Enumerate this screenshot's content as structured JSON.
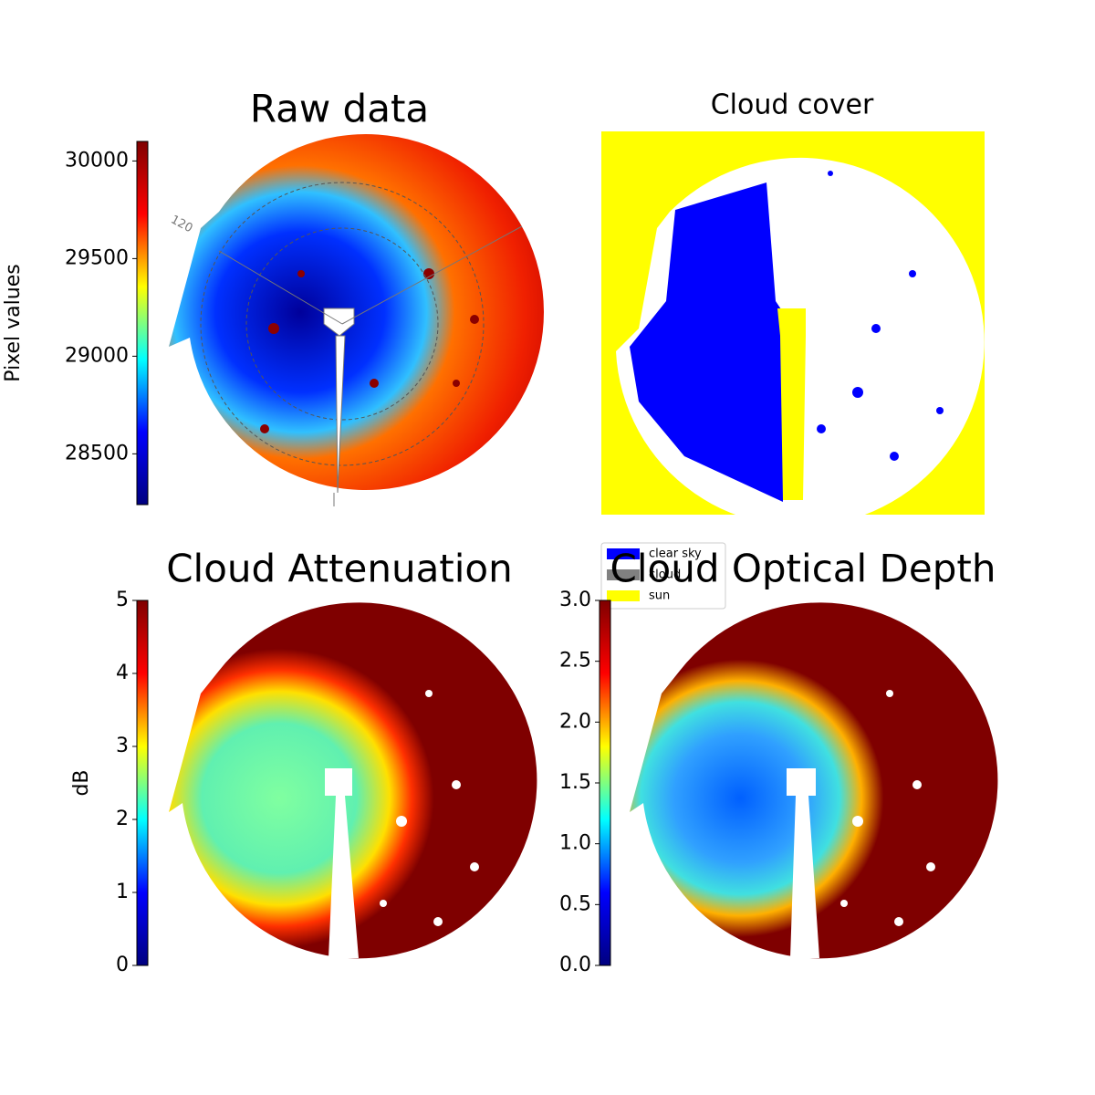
{
  "chart_data": [
    {
      "type": "image-colorbar",
      "title": "Raw data",
      "colorbar_label": "Pixel values",
      "ylim": [
        28240,
        30100
      ],
      "yticks": [
        28500,
        29000,
        29500,
        30000
      ],
      "colormap": [
        "#00007f",
        "#0000ff",
        "#00ffff",
        "#ffff00",
        "#ff0000",
        "#7f0000"
      ],
      "annotations": [
        "120"
      ]
    },
    {
      "type": "image-legend",
      "title": "Cloud cover",
      "legend": [
        {
          "name": "clear sky",
          "color": "#0000ff"
        },
        {
          "name": "cloud",
          "color": "#808080"
        },
        {
          "name": "sun",
          "color": "#ffff00"
        }
      ]
    },
    {
      "type": "image-colorbar",
      "title": "Cloud Attenuation",
      "colorbar_label": "dB",
      "ylim": [
        0,
        5
      ],
      "yticks": [
        0,
        1,
        2,
        3,
        4,
        5
      ],
      "colormap": [
        "#00007f",
        "#0000ff",
        "#00ffff",
        "#ffff00",
        "#ff0000",
        "#7f0000"
      ]
    },
    {
      "type": "image-colorbar",
      "title": "Cloud Optical Depth",
      "ylim": [
        0,
        3
      ],
      "yticks": [
        {
          "value": 0,
          "label": "0.0"
        },
        0.5,
        {
          "value": 1,
          "label": "1.0"
        },
        1.5,
        {
          "value": 2,
          "label": "2.0"
        },
        2.5,
        {
          "value": 3,
          "label": "3.0"
        }
      ],
      "colormap": [
        "#00007f",
        "#0000ff",
        "#00ffff",
        "#ffff00",
        "#ff0000",
        "#7f0000"
      ]
    }
  ]
}
